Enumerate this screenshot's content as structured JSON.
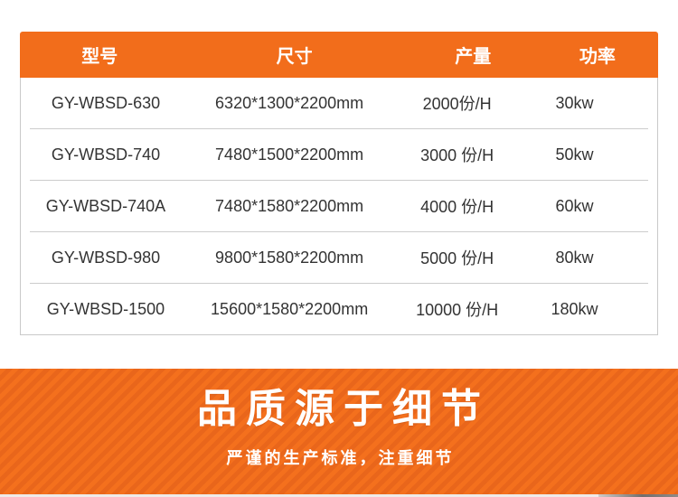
{
  "spec_table": {
    "columns": [
      "型号",
      "尺寸",
      "产量",
      "功率"
    ],
    "rows": [
      {
        "model": "GY-WBSD-630",
        "size": "6320*1300*2200mm",
        "output": "2000份/H",
        "power": "30kw"
      },
      {
        "model": "GY-WBSD-740",
        "size": "7480*1500*2200mm",
        "output": "3000 份/H",
        "power": "50kw"
      },
      {
        "model": "GY-WBSD-740A",
        "size": "7480*1580*2200mm",
        "output": "4000 份/H",
        "power": "60kw"
      },
      {
        "model": "GY-WBSD-980",
        "size": "9800*1580*2200mm",
        "output": "5000 份/H",
        "power": "80kw"
      },
      {
        "model": "GY-WBSD-1500",
        "size": "15600*1580*2200mm",
        "output": "10000 份/H",
        "power": "180kw"
      }
    ]
  },
  "banner": {
    "title": "品质源于细节",
    "subtitle": "严谨的生产标准，注重细节"
  },
  "colors": {
    "header_orange": "#f26d1b",
    "banner_orange": "#f4701d",
    "banner_stripe": "#e9661b",
    "table_border": "#c9c9c9",
    "row_divider": "#cccccc",
    "row_text": "#333333",
    "header_text": "#ffffff"
  }
}
